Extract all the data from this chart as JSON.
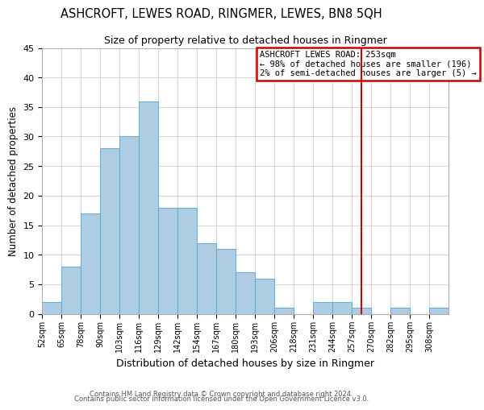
{
  "title": "ASHCROFT, LEWES ROAD, RINGMER, LEWES, BN8 5QH",
  "subtitle": "Size of property relative to detached houses in Ringmer",
  "xlabel": "Distribution of detached houses by size in Ringmer",
  "ylabel": "Number of detached properties",
  "bin_labels": [
    "52sqm",
    "65sqm",
    "78sqm",
    "90sqm",
    "103sqm",
    "116sqm",
    "129sqm",
    "142sqm",
    "154sqm",
    "167sqm",
    "180sqm",
    "193sqm",
    "206sqm",
    "218sqm",
    "231sqm",
    "244sqm",
    "257sqm",
    "270sqm",
    "282sqm",
    "295sqm",
    "308sqm"
  ],
  "bar_heights": [
    2,
    8,
    17,
    28,
    30,
    36,
    18,
    18,
    12,
    11,
    7,
    6,
    1,
    0,
    2,
    2,
    1,
    0,
    1,
    0,
    1
  ],
  "bar_color": "#aecde3",
  "bar_edge_color": "#6aaed6",
  "ylim": [
    0,
    45
  ],
  "yticks": [
    0,
    5,
    10,
    15,
    20,
    25,
    30,
    35,
    40,
    45
  ],
  "vline_x": 16.5,
  "vline_color": "#cc0000",
  "annotation_title": "ASHCROFT LEWES ROAD: 253sqm",
  "annotation_line1": "← 98% of detached houses are smaller (196)",
  "annotation_line2": "2% of semi-detached houses are larger (5) →",
  "annotation_box_color": "#ffffff",
  "annotation_box_edge_color": "#cc0000",
  "footer_line1": "Contains HM Land Registry data © Crown copyright and database right 2024.",
  "footer_line2": "Contains public sector information licensed under the Open Government Licence v3.0.",
  "background_color": "#ffffff",
  "grid_color": "#d0d0d0"
}
